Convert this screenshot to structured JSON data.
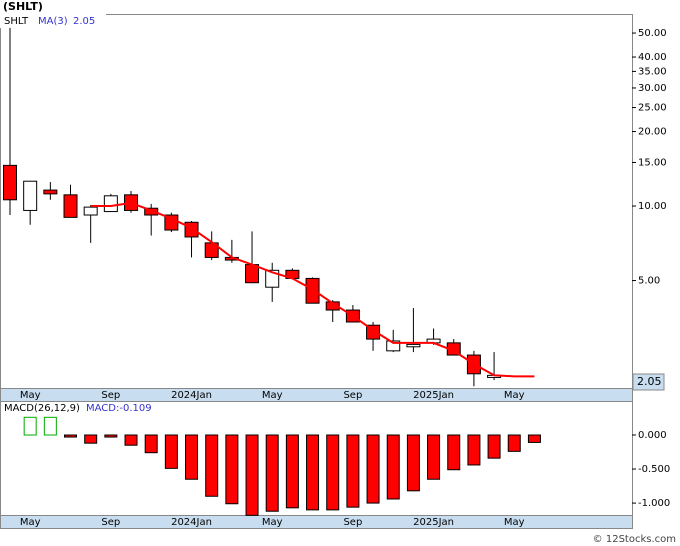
{
  "chart_data": [
    {
      "type": "candlestick",
      "title": "(SHLT)",
      "symbol_label": "SHLT",
      "ma_label": "MA(3)",
      "ma_value_label": "2.05",
      "last_price_label": "2.05",
      "log_scale": true,
      "grid": false,
      "categories": [
        null,
        "May",
        null,
        null,
        null,
        "Sep",
        null,
        null,
        null,
        "2024Jan",
        null,
        null,
        null,
        "May",
        null,
        null,
        null,
        "Sep",
        null,
        null,
        null,
        "2025Jan",
        null,
        null,
        null,
        "May",
        null
      ],
      "open": [
        14.6,
        9.6,
        11.6,
        11.1,
        9.2,
        9.5,
        11.1,
        9.8,
        9.2,
        8.6,
        7.1,
        6.2,
        5.8,
        4.7,
        5.5,
        5.1,
        4.1,
        3.8,
        3.3,
        2.6,
        2.7,
        2.8,
        2.8,
        2.5,
        2.03,
        null,
        null
      ],
      "high": [
        52.5,
        12.6,
        12.5,
        12.2,
        10.1,
        11.2,
        11.5,
        10.2,
        9.4,
        8.7,
        7.9,
        7.3,
        7.9,
        5.9,
        5.6,
        5.15,
        4.17,
        3.98,
        3.4,
        3.16,
        3.87,
        3.2,
        2.9,
        2.6,
        2.57,
        null,
        null
      ],
      "low": [
        9.2,
        8.4,
        10.6,
        9.0,
        7.1,
        9.5,
        9.4,
        7.6,
        7.85,
        6.2,
        6.05,
        5.9,
        4.9,
        4.1,
        5.1,
        4.05,
        3.4,
        3.4,
        2.6,
        2.57,
        2.57,
        2.75,
        2.5,
        1.87,
        1.98,
        null,
        null
      ],
      "close": [
        10.6,
        12.6,
        11.2,
        9.0,
        9.9,
        11.0,
        9.6,
        9.2,
        8.0,
        7.5,
        6.2,
        6.05,
        4.9,
        5.5,
        5.1,
        4.05,
        3.8,
        3.4,
        2.9,
        2.85,
        2.76,
        2.9,
        2.5,
        2.1,
        2.07,
        null,
        null
      ],
      "up_color": "#ffffff",
      "down_color": "#ff0000",
      "series": [
        {
          "name": "MA(3)",
          "color": "#ff0000",
          "values": [
            null,
            null,
            null,
            null,
            10.0,
            10.0,
            10.3,
            9.6,
            8.9,
            8.15,
            7.15,
            6.2,
            5.8,
            5.4,
            5.1,
            4.6,
            4.05,
            3.6,
            3.15,
            2.8,
            2.8,
            2.8,
            2.6,
            2.3,
            2.07,
            2.05,
            2.05
          ]
        }
      ],
      "ylim": [
        1.84,
        59.7
      ],
      "yticks": [
        {
          "value": 50,
          "label": "50.00"
        },
        {
          "value": 40,
          "label": "40.00"
        },
        {
          "value": 35,
          "label": "35.00"
        },
        {
          "value": 30,
          "label": "30.00"
        },
        {
          "value": 25,
          "label": "25.00"
        },
        {
          "value": 20,
          "label": "20.00"
        },
        {
          "value": 15,
          "label": "15.00"
        },
        {
          "value": 10,
          "label": "10.00"
        },
        {
          "value": 5,
          "label": "5.00"
        }
      ]
    },
    {
      "type": "bar",
      "title": "MACD(26,12,9)",
      "value_label": "MACD:-0.109",
      "positive_color": "#00aa00",
      "negative_color": "#ff0000",
      "values": [
        null,
        0.26,
        0.26,
        -0.03,
        -0.12,
        -0.03,
        -0.15,
        -0.26,
        -0.49,
        -0.65,
        -0.9,
        -1.01,
        -1.18,
        -1.12,
        -1.07,
        -1.1,
        -1.1,
        -1.06,
        -1.0,
        -0.94,
        -0.82,
        -0.65,
        -0.51,
        -0.44,
        -0.34,
        -0.24,
        -0.109
      ],
      "ylim": [
        -1.19,
        0.485
      ],
      "yticks": [
        {
          "value": 0,
          "label": "0.000"
        },
        {
          "value": -0.5,
          "label": "-0.500"
        },
        {
          "value": -1,
          "label": "-1.000"
        }
      ]
    }
  ],
  "footer": "© 12Stocks.com"
}
